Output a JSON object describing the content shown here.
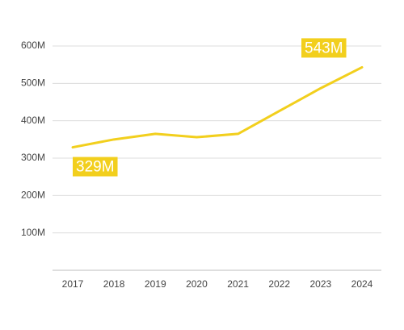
{
  "chart_data": {
    "type": "line",
    "categories": [
      "2017",
      "2018",
      "2019",
      "2020",
      "2021",
      "2022",
      "2023",
      "2024"
    ],
    "values": [
      329,
      350,
      365,
      356,
      365,
      426,
      487,
      543
    ],
    "value_labels": [
      "329M",
      null,
      null,
      null,
      null,
      null,
      null,
      "543M"
    ],
    "color": "#f2cf1d",
    "ylim": [
      0,
      600
    ],
    "yticks": [
      {
        "value": 100,
        "label": "100M"
      },
      {
        "value": 200,
        "label": "200M"
      },
      {
        "value": 300,
        "label": "300M"
      },
      {
        "value": 400,
        "label": "400M"
      },
      {
        "value": 500,
        "label": "500M"
      },
      {
        "value": 600,
        "label": "600M"
      }
    ],
    "grid": true
  }
}
